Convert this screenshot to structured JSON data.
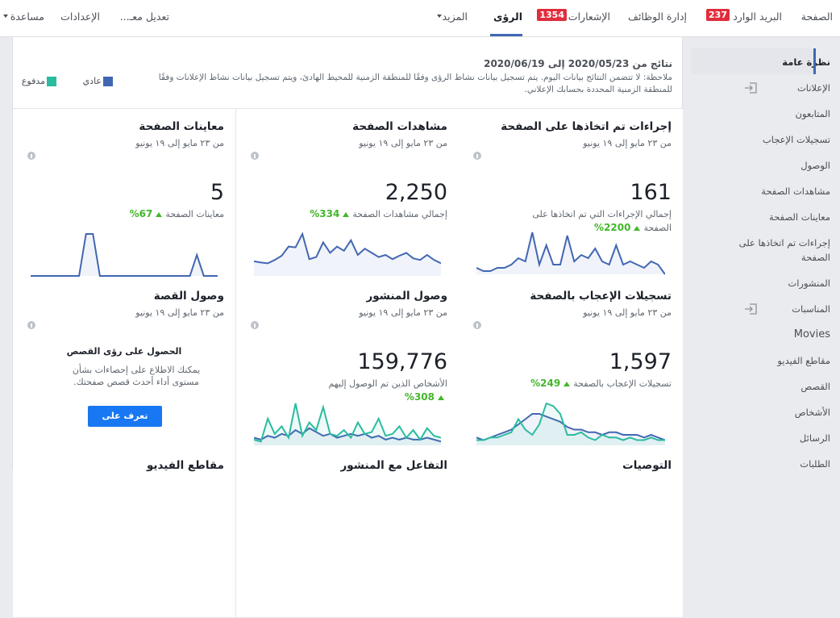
{
  "nav": {
    "items": [
      {
        "label": "الصفحة"
      },
      {
        "label": "البريد الوارد",
        "badge": "237"
      },
      {
        "label": "إدارة الوظائف"
      },
      {
        "label": "الإشعارات",
        "badge": "1354"
      },
      {
        "label": "الرؤى"
      },
      {
        "label": "المزيد"
      }
    ],
    "tools": [
      "تعديل معـ...",
      "الإعدادات",
      "مساعدة"
    ]
  },
  "sidebar": [
    "نظرة عامة",
    "الإعلانات",
    "المتابعون",
    "تسجيلات الإعجاب",
    "الوصول",
    "مشاهدات الصفحة",
    "معاينات الصفحة",
    "إجراءات تم اتخاذها على الصفحة",
    "المنشورات",
    "المناسبات",
    "Movies",
    "مقاطع الفيديو",
    "القصص",
    "الأشخاص",
    "الرسائل",
    "الطلبات"
  ],
  "header": {
    "range": "نتائج من 2020/05/23 إلى 2020/06/19",
    "note": "ملاحظة: لا تتضمن النتائج بيانات اليوم. يتم تسجيل بيانات نشاط الرؤى وفقًا للمنطقة الزمنية للمحيط الهادئ، ويتم تسجيل بيانات نشاط الإعلانات وفقًا للمنطقة الزمنية المحددة بحسابك الإعلاني.",
    "legend": [
      {
        "label": "عادي",
        "color": "#4267b2"
      },
      {
        "label": "مدفوع",
        "color": "#2bbba0"
      }
    ]
  },
  "cards": [
    {
      "title": "إجراءات تم اتخاذها على الصفحة",
      "period": "من ٢٣ مايو إلى ١٩ يونيو",
      "value": "161",
      "caption": "إجمالي الإجراءات التي تم اتخاذها على الصفحة",
      "change": "2200%",
      "series": [
        {
          "color": "#4267b2",
          "values": [
            2,
            1,
            1,
            2,
            2,
            3,
            5,
            4,
            13,
            3,
            9,
            3,
            3,
            12,
            4,
            6,
            5,
            8,
            4,
            3,
            9,
            3,
            4,
            3,
            2,
            4,
            3,
            0
          ]
        }
      ]
    },
    {
      "title": "مشاهدات الصفحة",
      "period": "من ٢٣ مايو إلى ١٩ يونيو",
      "value": "2,250",
      "caption": "إجمالي مشاهدات الصفحة",
      "change": "334%",
      "series": [
        {
          "color": "#4267b2",
          "values": [
            35,
            32,
            30,
            38,
            48,
            70,
            68,
            100,
            40,
            45,
            80,
            55,
            70,
            60,
            85,
            50,
            65,
            55,
            45,
            50,
            40,
            48,
            55,
            42,
            38,
            50,
            38,
            30
          ]
        }
      ]
    },
    {
      "title": "معاينات الصفحة",
      "period": "من ٢٣ مايو إلى ١٩ يونيو",
      "value": "5",
      "caption": "معاينات الصفحة",
      "change": "67%",
      "series": [
        {
          "color": "#4267b2",
          "values": [
            0,
            0,
            0,
            0,
            0,
            0,
            0,
            0,
            2,
            2,
            0,
            0,
            0,
            0,
            0,
            0,
            0,
            0,
            0,
            0,
            0,
            0,
            0,
            0,
            1,
            0,
            0,
            0
          ]
        }
      ]
    },
    {
      "title": "تسجيلات الإعجاب بالصفحة",
      "period": "من ٢٣ مايو إلى ١٩ يونيو",
      "value": "1,597",
      "caption": "تسجيلات الإعجاب بالصفحة",
      "change": "249%",
      "series": [
        {
          "color": "#4267b2",
          "values": [
            3,
            2,
            3,
            4,
            5,
            6,
            8,
            10,
            12,
            12,
            11,
            10,
            9,
            7,
            6,
            6,
            5,
            5,
            4,
            5,
            5,
            4,
            4,
            4,
            3,
            4,
            3,
            2
          ]
        },
        {
          "color": "#2bbba0",
          "values": [
            2,
            2,
            3,
            3,
            4,
            5,
            10,
            6,
            4,
            8,
            16,
            15,
            12,
            4,
            4,
            5,
            3,
            2,
            4,
            3,
            3,
            2,
            3,
            2,
            2,
            3,
            2,
            2
          ]
        }
      ]
    },
    {
      "title": "وصول المنشور",
      "period": "من ٢٣ مايو إلى ١٩ يونيو",
      "value": "159,776",
      "caption": "الأشخاص الذين تم الوصول إليهم",
      "change": "308%",
      "series": [
        {
          "color": "#4267b2",
          "values": [
            4,
            3,
            5,
            4,
            6,
            5,
            8,
            6,
            9,
            7,
            5,
            6,
            4,
            5,
            6,
            5,
            6,
            4,
            5,
            3,
            4,
            3,
            4,
            3,
            3,
            4,
            3,
            2
          ]
        },
        {
          "color": "#2bbba0",
          "values": [
            3,
            2,
            14,
            6,
            10,
            4,
            22,
            5,
            12,
            8,
            20,
            6,
            5,
            8,
            4,
            12,
            6,
            7,
            14,
            5,
            6,
            10,
            4,
            8,
            3,
            9,
            5,
            4
          ]
        }
      ]
    }
  ],
  "story_card": {
    "title": "وصول القصة",
    "period": "من ٢٣ مايو إلى ١٩ يونيو",
    "box_title": "الحصول على رؤى القصص",
    "box_text": "يمكنك الاطلاع على إحصاءات بشأن مستوى أداء أحدث قصص صفحتك.",
    "button": "تعرف على المزيد"
  },
  "more_cards": [
    "التوصيات",
    "التفاعل مع المنشور",
    "مقاطع الفيديو"
  ]
}
